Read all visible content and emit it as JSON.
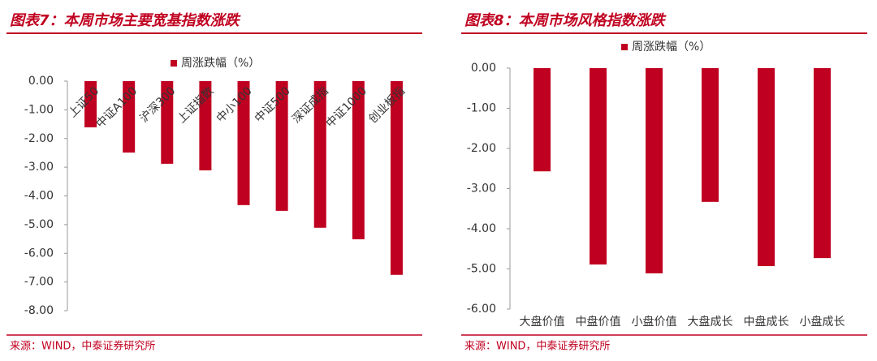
{
  "chart_data": [
    {
      "type": "bar",
      "title": "图表7：本周市场主要宽基指数涨跌",
      "source": "来源：WIND，中泰证券研究所",
      "categories": [
        "上证50",
        "中证A100",
        "沪深300",
        "上证指数",
        "中小100",
        "中证500",
        "深证成指",
        "中证1000",
        "创业板指"
      ],
      "series": [
        {
          "name": "周涨跌幅（%）",
          "color": "#c00020",
          "values": [
            -1.61,
            -2.49,
            -2.88,
            -3.11,
            -4.32,
            -4.52,
            -5.11,
            -5.51,
            -6.75
          ]
        }
      ],
      "ylim": [
        -8,
        0
      ],
      "yticks": [
        {
          "value": 0,
          "label": "0.00"
        },
        {
          "value": -1,
          "label": "-1.00"
        },
        {
          "value": -2,
          "label": "-2.00"
        },
        {
          "value": -3,
          "label": "-3.00"
        },
        {
          "value": -4,
          "label": "-4.00"
        },
        {
          "value": -5,
          "label": "-5.00"
        },
        {
          "value": -6,
          "label": "-6.00"
        },
        {
          "value": -7,
          "label": "-7.00"
        },
        {
          "value": -8,
          "label": "-8.00"
        }
      ],
      "label_position": "rotated-inside"
    },
    {
      "type": "bar",
      "title": "图表8：本周市场风格指数涨跌",
      "source": "来源：WIND，中泰证券研究所",
      "categories": [
        "大盘价值",
        "中盘价值",
        "小盘价值",
        "大盘成长",
        "中盘成长",
        "小盘成长"
      ],
      "series": [
        {
          "name": "周涨跌幅（%）",
          "color": "#c00020",
          "values": [
            -2.57,
            -4.89,
            -5.11,
            -3.33,
            -4.93,
            -4.73
          ]
        }
      ],
      "ylim": [
        -6,
        0
      ],
      "yticks": [
        {
          "value": 0,
          "label": "0.00"
        },
        {
          "value": -1,
          "label": "-1.00"
        },
        {
          "value": -2,
          "label": "-2.00"
        },
        {
          "value": -3,
          "label": "-3.00"
        },
        {
          "value": -4,
          "label": "-4.00"
        },
        {
          "value": -5,
          "label": "-5.00"
        },
        {
          "value": -6,
          "label": "-6.00"
        }
      ],
      "label_position": "bottom"
    }
  ]
}
